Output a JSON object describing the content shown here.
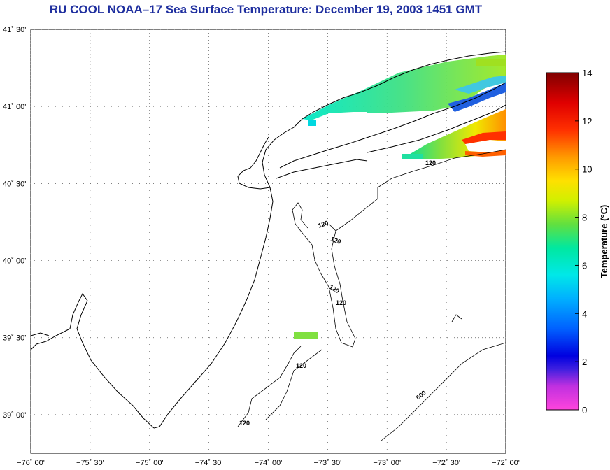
{
  "title": "RU COOL  NOAA–17  Sea Surface Temperature:  December 19, 2003 1451 GMT",
  "map": {
    "lon_range": [
      -76.0,
      -72.0
    ],
    "lat_range": [
      38.75,
      41.5
    ],
    "grid": true,
    "grid_style": "dotted",
    "lat_ticks": [
      {
        "value": 41.5,
        "label": "41˚ 30'"
      },
      {
        "value": 41.0,
        "label": "41˚ 00'"
      },
      {
        "value": 40.5,
        "label": "40˚ 30'"
      },
      {
        "value": 40.0,
        "label": "40˚ 00'"
      },
      {
        "value": 39.5,
        "label": "39˚ 30'"
      },
      {
        "value": 39.0,
        "label": "39˚ 00'"
      }
    ],
    "lon_ticks": [
      {
        "value": -76.0,
        "label": "−76˚ 00'"
      },
      {
        "value": -75.5,
        "label": "−75˚ 30'"
      },
      {
        "value": -75.0,
        "label": "−75˚ 00'"
      },
      {
        "value": -74.5,
        "label": "−74˚ 30'"
      },
      {
        "value": -74.0,
        "label": "−74˚ 00'"
      },
      {
        "value": -73.5,
        "label": "−73˚ 30'"
      },
      {
        "value": -73.0,
        "label": "−73˚ 00'"
      },
      {
        "value": -72.5,
        "label": "−72˚ 30'"
      },
      {
        "value": -72.0,
        "label": "−72˚ 00'"
      }
    ],
    "contour_labels": [
      "120",
      "120",
      "120",
      "120",
      "120",
      "120",
      "120",
      "600"
    ]
  },
  "colorbar": {
    "title": "Temperature (°C)",
    "min": 0,
    "max": 14,
    "ticks": [
      "0",
      "2",
      "4",
      "6",
      "8",
      "10",
      "12",
      "14"
    ],
    "colors": [
      "#ff44dd",
      "#8a2be2",
      "#0000e0",
      "#00a0ff",
      "#00e8e8",
      "#00e8a0",
      "#60e040",
      "#d0f000",
      "#ffe000",
      "#ff9a00",
      "#ff3000",
      "#e00000",
      "#a00000",
      "#800000"
    ]
  }
}
